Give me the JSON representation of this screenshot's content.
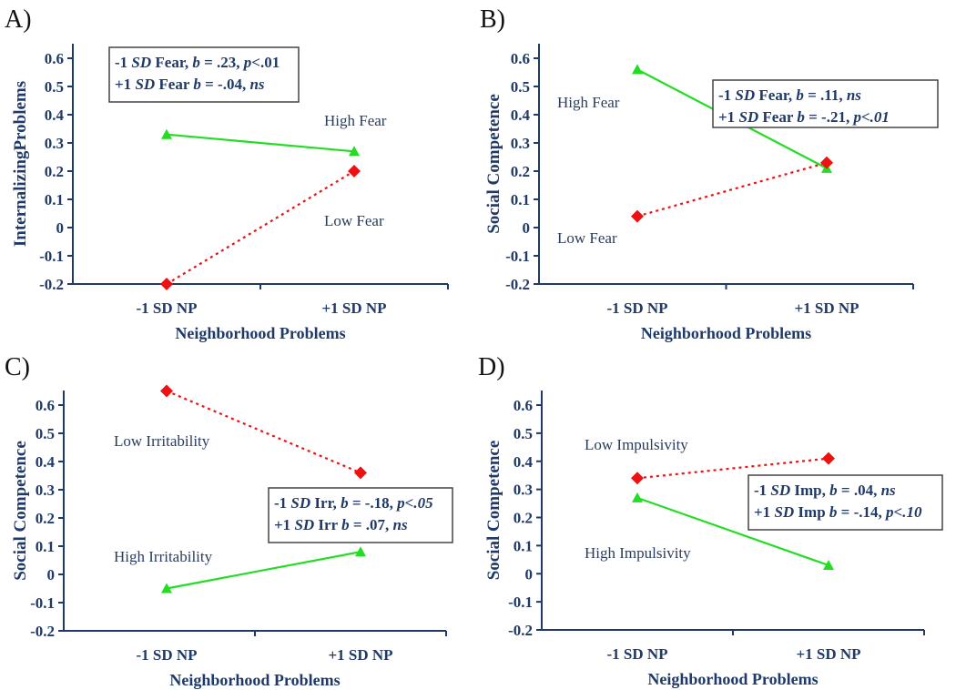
{
  "chart_data": [
    {
      "type": "line",
      "panel": "A)",
      "xlabel": "Neighborhood Problems",
      "ylabel": "InternalizingProblems",
      "categories": [
        "-1 SD NP",
        "+1 SD NP"
      ],
      "ylim": [
        -0.2,
        0.6
      ],
      "yticks": [
        "0.6",
        "0.5",
        "0.4",
        "0.3",
        "0.2",
        "0.1",
        "0",
        "-0.1",
        "-0.2"
      ],
      "series": [
        {
          "name": "High Fear",
          "values": [
            0.33,
            0.27
          ],
          "color": "#22dd22",
          "style": "solid",
          "marker": "triangle"
        },
        {
          "name": "Low Fear",
          "values": [
            -0.2,
            0.2
          ],
          "color": "#ee1111",
          "style": "dotted",
          "marker": "diamond"
        }
      ],
      "annotation": [
        [
          {
            "t": "-1 "
          },
          {
            "t": "SD",
            "i": true
          },
          {
            "t": " Fear, "
          },
          {
            "t": "b",
            "i": true
          },
          {
            "t": " = .23, "
          },
          {
            "t": "p",
            "i": true
          },
          {
            "t": "<.01"
          }
        ],
        [
          {
            "t": "+1 "
          },
          {
            "t": "SD",
            "i": true
          },
          {
            "t": " Fear "
          },
          {
            "t": "b",
            "i": true
          },
          {
            "t": " = -.04, "
          },
          {
            "t": "ns",
            "i": true
          }
        ]
      ]
    },
    {
      "type": "line",
      "panel": "B)",
      "xlabel": "Neighborhood Problems",
      "ylabel": "Social Competence",
      "categories": [
        "-1 SD NP",
        "+1 SD NP"
      ],
      "ylim": [
        -0.2,
        0.6
      ],
      "yticks": [
        "0.6",
        "0.5",
        "0.4",
        "0.3",
        "0.2",
        "0.1",
        "0",
        "-0.1",
        "-0.2"
      ],
      "series": [
        {
          "name": "High Fear",
          "values": [
            0.56,
            0.21
          ],
          "color": "#22dd22",
          "style": "solid",
          "marker": "triangle"
        },
        {
          "name": "Low Fear",
          "values": [
            0.04,
            0.23
          ],
          "color": "#ee1111",
          "style": "dotted",
          "marker": "diamond"
        }
      ],
      "annotation": [
        [
          {
            "t": "-1 "
          },
          {
            "t": "SD",
            "i": true
          },
          {
            "t": " Fear, "
          },
          {
            "t": "b",
            "i": true
          },
          {
            "t": " = .11, "
          },
          {
            "t": "ns",
            "i": true
          }
        ],
        [
          {
            "t": "+1 "
          },
          {
            "t": "SD",
            "i": true
          },
          {
            "t": " Fear "
          },
          {
            "t": "b",
            "i": true
          },
          {
            "t": " = -.21, "
          },
          {
            "t": "p<.01",
            "i": true
          }
        ]
      ]
    },
    {
      "type": "line",
      "panel": "C)",
      "xlabel": "Neighborhood Problems",
      "ylabel": "Social Competence",
      "categories": [
        "-1 SD NP",
        "+1 SD NP"
      ],
      "ylim": [
        -0.2,
        0.6
      ],
      "yticks": [
        "0.6",
        "0.5",
        "0.4",
        "0.3",
        "0.2",
        "0.1",
        "0",
        "-0.1",
        "-0.2"
      ],
      "series": [
        {
          "name": "Low Irritability",
          "values": [
            0.65,
            0.36
          ],
          "color": "#ee1111",
          "style": "dotted",
          "marker": "diamond"
        },
        {
          "name": "High Irritability",
          "values": [
            -0.05,
            0.08
          ],
          "color": "#22dd22",
          "style": "solid",
          "marker": "triangle"
        }
      ],
      "annotation": [
        [
          {
            "t": "-1 "
          },
          {
            "t": "SD",
            "i": true
          },
          {
            "t": " Irr, "
          },
          {
            "t": "b",
            "i": true
          },
          {
            "t": " = -.18, "
          },
          {
            "t": "p<.05",
            "i": true
          }
        ],
        [
          {
            "t": "+1 "
          },
          {
            "t": "SD",
            "i": true
          },
          {
            "t": " Irr "
          },
          {
            "t": "b",
            "i": true
          },
          {
            "t": " = .07, "
          },
          {
            "t": "ns",
            "i": true
          }
        ]
      ]
    },
    {
      "type": "line",
      "panel": "D)",
      "xlabel": "Neighborhood Problems",
      "ylabel": "Social Competence",
      "categories": [
        "-1 SD NP",
        "+1 SD NP"
      ],
      "ylim": [
        -0.2,
        0.6
      ],
      "yticks": [
        "0.6",
        "0.5",
        "0.4",
        "0.3",
        "0.2",
        "0.1",
        "0",
        "-0.1",
        "-0.2"
      ],
      "series": [
        {
          "name": "Low Impulsivity",
          "values": [
            0.34,
            0.41
          ],
          "color": "#ee1111",
          "style": "dotted",
          "marker": "diamond"
        },
        {
          "name": "High Impulsivity",
          "values": [
            0.27,
            0.03
          ],
          "color": "#22dd22",
          "style": "solid",
          "marker": "triangle"
        }
      ],
      "annotation": [
        [
          {
            "t": "-1 "
          },
          {
            "t": "SD",
            "i": true
          },
          {
            "t": " Imp, "
          },
          {
            "t": "b",
            "i": true
          },
          {
            "t": " = .04, "
          },
          {
            "t": "ns",
            "i": true
          }
        ],
        [
          {
            "t": "+1 "
          },
          {
            "t": "SD",
            "i": true
          },
          {
            "t": " Imp "
          },
          {
            "t": "b",
            "i": true
          },
          {
            "t": " = -.14, "
          },
          {
            "t": "p<.10",
            "i": true
          }
        ]
      ]
    }
  ]
}
